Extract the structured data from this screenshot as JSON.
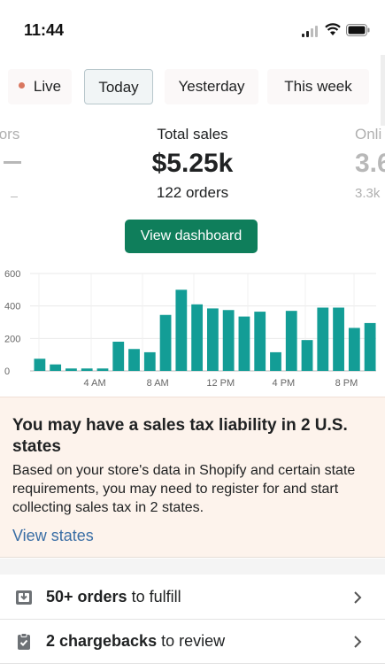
{
  "status_bar": {
    "time": "11:44"
  },
  "tabs": [
    {
      "label": "Live"
    },
    {
      "label": "Today"
    },
    {
      "label": "Yesterday"
    },
    {
      "label": "This week"
    }
  ],
  "metrics": {
    "left": {
      "label": "tors"
    },
    "center": {
      "label": "Total sales",
      "value": "$5.25k",
      "sub": "122 orders"
    },
    "right": {
      "label": "Onli",
      "value": "3.6",
      "sub": "3.3k"
    }
  },
  "dashboard_button": {
    "label": "View dashboard"
  },
  "chart_data": {
    "type": "bar",
    "y_ticks": [
      "600",
      "400",
      "200",
      "0"
    ],
    "x_ticks": [
      "4 AM",
      "8 AM",
      "12 PM",
      "4 PM",
      "8 PM"
    ],
    "ylim": [
      0,
      600
    ],
    "values": [
      75,
      40,
      15,
      15,
      15,
      180,
      135,
      115,
      345,
      500,
      410,
      385,
      375,
      335,
      365,
      115,
      370,
      190,
      390,
      390,
      265,
      295
    ],
    "color": "#139d96"
  },
  "tax_card": {
    "title": "You may have a sales tax liability in 2 U.S. states",
    "body": "Based on your store's data in Shopify and certain state requirements, you may need to register for and start collecting sales tax in 2 states.",
    "link": "View states"
  },
  "tasks": [
    {
      "bold": "50+ orders",
      "rest": " to fulfill",
      "icon": "download-box-icon"
    },
    {
      "bold": "2 chargebacks",
      "rest": " to review",
      "icon": "clipboard-icon"
    }
  ]
}
